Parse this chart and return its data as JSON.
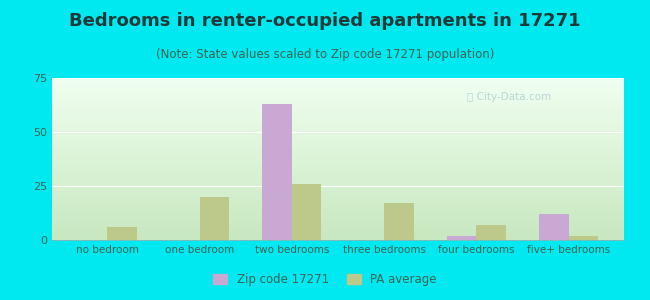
{
  "title": "Bedrooms in renter-occupied apartments in 17271",
  "subtitle": "(Note: State values scaled to Zip code 17271 population)",
  "categories": [
    "no bedroom",
    "one bedroom",
    "two bedrooms",
    "three bedrooms",
    "four bedrooms",
    "five+ bedrooms"
  ],
  "zip_values": [
    0,
    0,
    63,
    0,
    2,
    12
  ],
  "pa_values": [
    6,
    20,
    26,
    17,
    7,
    2
  ],
  "zip_color": "#c9a8d4",
  "pa_color": "#bcc98a",
  "background_color": "#00e8f0",
  "plot_bg_top": "#f0fff0",
  "plot_bg_bottom": "#c8e8c0",
  "ylim": [
    0,
    75
  ],
  "yticks": [
    0,
    25,
    50,
    75
  ],
  "legend_zip_label": "Zip code 17271",
  "legend_pa_label": "PA average",
  "title_fontsize": 13,
  "subtitle_fontsize": 8.5,
  "tick_label_color": "#336655",
  "bar_width": 0.32
}
